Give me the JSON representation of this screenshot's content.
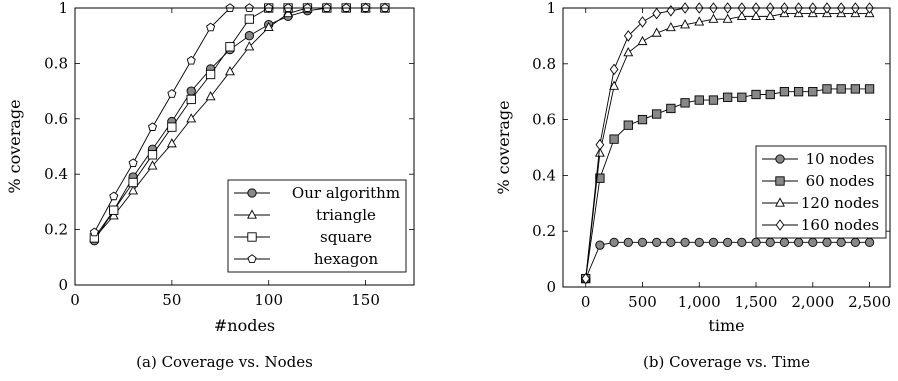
{
  "charts": [
    {
      "caption": "(a) Coverage vs. Nodes",
      "chart_data": {
        "type": "line",
        "xlabel": "#nodes",
        "ylabel": "% coverage",
        "xlim": [
          0,
          175
        ],
        "ylim": [
          0,
          1
        ],
        "xticks": [
          "0",
          "50",
          "100",
          "150"
        ],
        "yticks": [
          "0",
          "0.2",
          "0.4",
          "0.6",
          "0.8",
          "1"
        ],
        "grid": false,
        "legend_position": "bottom-right",
        "series": [
          {
            "name": "Our algorithm",
            "marker": "circle-filled",
            "x": [
              10,
              20,
              30,
              40,
              50,
              60,
              70,
              80,
              90,
              100,
              110,
              120,
              130,
              140,
              150,
              160
            ],
            "y": [
              0.16,
              0.27,
              0.39,
              0.49,
              0.59,
              0.7,
              0.78,
              0.85,
              0.9,
              0.94,
              0.97,
              0.99,
              1.0,
              1.0,
              1.0,
              1.0
            ]
          },
          {
            "name": "triangle",
            "marker": "triangle",
            "x": [
              10,
              20,
              30,
              40,
              50,
              60,
              70,
              80,
              90,
              100,
              110,
              120,
              130,
              140,
              150,
              160
            ],
            "y": [
              0.17,
              0.25,
              0.34,
              0.43,
              0.51,
              0.6,
              0.68,
              0.77,
              0.86,
              0.93,
              0.98,
              1.0,
              1.0,
              1.0,
              1.0,
              1.0
            ]
          },
          {
            "name": "square",
            "marker": "square",
            "x": [
              10,
              20,
              30,
              40,
              50,
              60,
              70,
              80,
              90,
              100,
              110,
              120,
              130,
              140,
              150,
              160
            ],
            "y": [
              0.17,
              0.27,
              0.37,
              0.47,
              0.57,
              0.67,
              0.76,
              0.86,
              0.96,
              1.0,
              1.0,
              1.0,
              1.0,
              1.0,
              1.0,
              1.0
            ]
          },
          {
            "name": "hexagon",
            "marker": "pentagon",
            "x": [
              10,
              20,
              30,
              40,
              50,
              60,
              70,
              80,
              90,
              100,
              110,
              120,
              130,
              140,
              150,
              160
            ],
            "y": [
              0.19,
              0.32,
              0.44,
              0.57,
              0.69,
              0.81,
              0.93,
              1.0,
              1.0,
              1.0,
              1.0,
              1.0,
              1.0,
              1.0,
              1.0,
              1.0
            ]
          }
        ]
      }
    },
    {
      "caption": "(b) Coverage vs. Time",
      "chart_data": {
        "type": "line",
        "xlabel": "time",
        "ylabel": "% coverage",
        "xlim": [
          -200,
          2680
        ],
        "ylim": [
          0,
          1
        ],
        "xticks": [
          "0",
          "500",
          "1,000",
          "1,500",
          "2,000",
          "2,500"
        ],
        "yticks": [
          "0",
          "0.2",
          "0.4",
          "0.6",
          "0.8",
          "1"
        ],
        "grid": false,
        "legend_position": "right",
        "series": [
          {
            "name": "10 nodes",
            "marker": "circle-filled",
            "x": [
              0,
              125,
              250,
              375,
              500,
              625,
              750,
              875,
              1000,
              1125,
              1250,
              1375,
              1500,
              1625,
              1750,
              1875,
              2000,
              2125,
              2250,
              2375,
              2500
            ],
            "y": [
              0.03,
              0.15,
              0.16,
              0.16,
              0.16,
              0.16,
              0.16,
              0.16,
              0.16,
              0.16,
              0.16,
              0.16,
              0.16,
              0.16,
              0.16,
              0.16,
              0.16,
              0.16,
              0.16,
              0.16,
              0.16
            ]
          },
          {
            "name": "60 nodes",
            "marker": "square-filled",
            "x": [
              0,
              125,
              250,
              375,
              500,
              625,
              750,
              875,
              1000,
              1125,
              1250,
              1375,
              1500,
              1625,
              1750,
              1875,
              2000,
              2125,
              2250,
              2375,
              2500
            ],
            "y": [
              0.03,
              0.39,
              0.53,
              0.58,
              0.6,
              0.62,
              0.64,
              0.66,
              0.67,
              0.67,
              0.68,
              0.68,
              0.69,
              0.69,
              0.7,
              0.7,
              0.7,
              0.71,
              0.71,
              0.71,
              0.71
            ]
          },
          {
            "name": "120 nodes",
            "marker": "triangle",
            "x": [
              0,
              125,
              250,
              375,
              500,
              625,
              750,
              875,
              1000,
              1125,
              1250,
              1375,
              1500,
              1625,
              1750,
              1875,
              2000,
              2125,
              2250,
              2375,
              2500
            ],
            "y": [
              0.03,
              0.48,
              0.72,
              0.84,
              0.88,
              0.91,
              0.93,
              0.94,
              0.95,
              0.96,
              0.96,
              0.97,
              0.97,
              0.97,
              0.98,
              0.98,
              0.98,
              0.98,
              0.98,
              0.98,
              0.98
            ]
          },
          {
            "name": "160 nodes",
            "marker": "diamond",
            "x": [
              0,
              125,
              250,
              375,
              500,
              625,
              750,
              875,
              1000,
              1125,
              1250,
              1375,
              1500,
              1625,
              1750,
              1875,
              2000,
              2125,
              2250,
              2375,
              2500
            ],
            "y": [
              0.03,
              0.51,
              0.78,
              0.9,
              0.95,
              0.98,
              0.99,
              1.0,
              1.0,
              1.0,
              1.0,
              1.0,
              1.0,
              1.0,
              1.0,
              1.0,
              1.0,
              1.0,
              1.0,
              1.0,
              1.0
            ]
          }
        ]
      }
    }
  ]
}
